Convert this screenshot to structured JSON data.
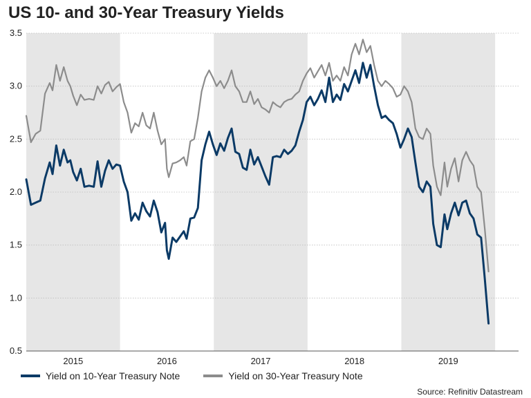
{
  "chart_data": {
    "type": "line",
    "title": "US 10- and 30-Year Treasury Yields",
    "xlabel": "",
    "ylabel": "",
    "source": "Source: Refinitiv Datastream",
    "x_range": [
      2014.5,
      2019.75
    ],
    "ylim": [
      0.5,
      3.5
    ],
    "yticks": [
      "0.5",
      "1.0",
      "1.5",
      "2.0",
      "2.5",
      "3.0",
      "3.5"
    ],
    "year_labels": [
      "2015",
      "2016",
      "2017",
      "2018",
      "2019"
    ],
    "shaded_years": [
      2015,
      2017,
      2019
    ],
    "colors": {
      "ten": "#0b3a66",
      "thirty": "#8c8c8c",
      "shade": "#e6e6e6",
      "grid": "#bdbdbd"
    },
    "series": [
      {
        "name": "Yield on 10-Year Treasury Note",
        "key": "ten",
        "points": [
          [
            2014.5,
            2.12
          ],
          [
            2014.55,
            1.88
          ],
          [
            2014.6,
            1.9
          ],
          [
            2014.65,
            1.92
          ],
          [
            2014.7,
            2.13
          ],
          [
            2014.75,
            2.28
          ],
          [
            2014.78,
            2.17
          ],
          [
            2014.82,
            2.44
          ],
          [
            2014.86,
            2.25
          ],
          [
            2014.9,
            2.4
          ],
          [
            2014.94,
            2.28
          ],
          [
            2014.97,
            2.3
          ],
          [
            2015.0,
            2.19
          ],
          [
            2015.04,
            2.11
          ],
          [
            2015.08,
            2.22
          ],
          [
            2015.12,
            2.05
          ],
          [
            2015.17,
            2.06
          ],
          [
            2015.22,
            2.05
          ],
          [
            2015.26,
            2.29
          ],
          [
            2015.3,
            2.05
          ],
          [
            2015.34,
            2.2
          ],
          [
            2015.38,
            2.3
          ],
          [
            2015.42,
            2.22
          ],
          [
            2015.46,
            2.26
          ],
          [
            2015.5,
            2.25
          ],
          [
            2015.54,
            2.1
          ],
          [
            2015.58,
            2.0
          ],
          [
            2015.62,
            1.73
          ],
          [
            2015.66,
            1.8
          ],
          [
            2015.7,
            1.74
          ],
          [
            2015.74,
            1.9
          ],
          [
            2015.78,
            1.82
          ],
          [
            2015.82,
            1.77
          ],
          [
            2015.86,
            1.92
          ],
          [
            2015.9,
            1.81
          ],
          [
            2015.94,
            1.62
          ],
          [
            2015.98,
            1.71
          ],
          [
            2016.0,
            1.45
          ],
          [
            2016.02,
            1.37
          ],
          [
            2016.06,
            1.57
          ],
          [
            2016.1,
            1.53
          ],
          [
            2016.14,
            1.58
          ],
          [
            2016.18,
            1.63
          ],
          [
            2016.21,
            1.56
          ],
          [
            2016.25,
            1.75
          ],
          [
            2016.29,
            1.76
          ],
          [
            2016.33,
            1.85
          ],
          [
            2016.37,
            2.3
          ],
          [
            2016.41,
            2.45
          ],
          [
            2016.45,
            2.57
          ],
          [
            2016.49,
            2.45
          ],
          [
            2016.53,
            2.35
          ],
          [
            2016.57,
            2.46
          ],
          [
            2016.61,
            2.39
          ],
          [
            2016.65,
            2.51
          ],
          [
            2016.69,
            2.6
          ],
          [
            2016.73,
            2.38
          ],
          [
            2016.77,
            2.36
          ],
          [
            2016.81,
            2.23
          ],
          [
            2016.85,
            2.21
          ],
          [
            2016.89,
            2.4
          ],
          [
            2016.93,
            2.26
          ],
          [
            2016.97,
            2.33
          ],
          [
            2017.01,
            2.24
          ],
          [
            2017.05,
            2.15
          ],
          [
            2017.09,
            2.07
          ],
          [
            2017.13,
            2.33
          ],
          [
            2017.17,
            2.34
          ],
          [
            2017.21,
            2.33
          ],
          [
            2017.25,
            2.4
          ],
          [
            2017.29,
            2.36
          ],
          [
            2017.33,
            2.39
          ],
          [
            2017.37,
            2.44
          ],
          [
            2017.41,
            2.57
          ],
          [
            2017.45,
            2.68
          ],
          [
            2017.49,
            2.85
          ],
          [
            2017.53,
            2.9
          ],
          [
            2017.57,
            2.82
          ],
          [
            2017.61,
            2.88
          ],
          [
            2017.65,
            2.96
          ],
          [
            2017.69,
            2.85
          ],
          [
            2017.73,
            3.08
          ],
          [
            2017.77,
            2.85
          ],
          [
            2017.81,
            2.92
          ],
          [
            2017.85,
            2.87
          ],
          [
            2017.89,
            3.02
          ],
          [
            2017.93,
            2.95
          ],
          [
            2017.97,
            3.05
          ],
          [
            2018.01,
            3.15
          ],
          [
            2018.05,
            3.03
          ],
          [
            2018.09,
            3.22
          ],
          [
            2018.13,
            3.08
          ],
          [
            2018.17,
            3.2
          ],
          [
            2018.21,
            3.0
          ],
          [
            2018.25,
            2.82
          ],
          [
            2018.29,
            2.7
          ],
          [
            2018.33,
            2.72
          ],
          [
            2018.37,
            2.68
          ],
          [
            2018.41,
            2.65
          ],
          [
            2018.45,
            2.55
          ],
          [
            2018.49,
            2.42
          ],
          [
            2018.53,
            2.5
          ],
          [
            2018.57,
            2.6
          ],
          [
            2018.61,
            2.52
          ],
          [
            2018.65,
            2.28
          ],
          [
            2018.69,
            2.05
          ],
          [
            2018.73,
            2.0
          ],
          [
            2018.77,
            2.1
          ],
          [
            2018.81,
            2.05
          ],
          [
            2018.84,
            1.7
          ],
          [
            2018.88,
            1.5
          ],
          [
            2018.92,
            1.48
          ],
          [
            2018.96,
            1.79
          ],
          [
            2018.99,
            1.65
          ],
          [
            2019.03,
            1.8
          ],
          [
            2019.07,
            1.9
          ],
          [
            2019.11,
            1.78
          ],
          [
            2019.15,
            1.9
          ],
          [
            2019.19,
            1.92
          ],
          [
            2019.23,
            1.8
          ],
          [
            2019.27,
            1.75
          ],
          [
            2019.31,
            1.6
          ],
          [
            2019.35,
            1.57
          ],
          [
            2019.39,
            1.18
          ],
          [
            2019.43,
            0.76
          ]
        ]
      },
      {
        "name": "Yield on 30-Year Treasury Note",
        "key": "thirty",
        "points": [
          [
            2014.5,
            2.72
          ],
          [
            2014.55,
            2.47
          ],
          [
            2014.6,
            2.55
          ],
          [
            2014.65,
            2.58
          ],
          [
            2014.7,
            2.93
          ],
          [
            2014.75,
            3.03
          ],
          [
            2014.78,
            2.96
          ],
          [
            2014.82,
            3.2
          ],
          [
            2014.86,
            3.05
          ],
          [
            2014.9,
            3.18
          ],
          [
            2014.94,
            3.05
          ],
          [
            2014.97,
            3.0
          ],
          [
            2015.0,
            2.91
          ],
          [
            2015.04,
            2.82
          ],
          [
            2015.08,
            2.92
          ],
          [
            2015.12,
            2.87
          ],
          [
            2015.17,
            2.88
          ],
          [
            2015.22,
            2.87
          ],
          [
            2015.26,
            3.0
          ],
          [
            2015.3,
            2.93
          ],
          [
            2015.34,
            3.01
          ],
          [
            2015.38,
            3.04
          ],
          [
            2015.42,
            2.95
          ],
          [
            2015.46,
            2.99
          ],
          [
            2015.5,
            3.02
          ],
          [
            2015.54,
            2.85
          ],
          [
            2015.58,
            2.75
          ],
          [
            2015.62,
            2.56
          ],
          [
            2015.66,
            2.65
          ],
          [
            2015.7,
            2.62
          ],
          [
            2015.74,
            2.75
          ],
          [
            2015.78,
            2.63
          ],
          [
            2015.82,
            2.6
          ],
          [
            2015.86,
            2.75
          ],
          [
            2015.9,
            2.58
          ],
          [
            2015.94,
            2.45
          ],
          [
            2015.98,
            2.5
          ],
          [
            2016.0,
            2.22
          ],
          [
            2016.02,
            2.14
          ],
          [
            2016.06,
            2.27
          ],
          [
            2016.1,
            2.28
          ],
          [
            2016.14,
            2.3
          ],
          [
            2016.18,
            2.33
          ],
          [
            2016.21,
            2.25
          ],
          [
            2016.25,
            2.48
          ],
          [
            2016.29,
            2.5
          ],
          [
            2016.33,
            2.7
          ],
          [
            2016.37,
            2.95
          ],
          [
            2016.41,
            3.08
          ],
          [
            2016.45,
            3.15
          ],
          [
            2016.49,
            3.08
          ],
          [
            2016.53,
            3.0
          ],
          [
            2016.57,
            3.05
          ],
          [
            2016.61,
            2.98
          ],
          [
            2016.65,
            3.05
          ],
          [
            2016.69,
            3.15
          ],
          [
            2016.73,
            3.0
          ],
          [
            2016.77,
            2.95
          ],
          [
            2016.81,
            2.85
          ],
          [
            2016.85,
            2.85
          ],
          [
            2016.89,
            2.95
          ],
          [
            2016.93,
            2.83
          ],
          [
            2016.97,
            2.88
          ],
          [
            2017.01,
            2.8
          ],
          [
            2017.05,
            2.78
          ],
          [
            2017.09,
            2.75
          ],
          [
            2017.13,
            2.85
          ],
          [
            2017.17,
            2.82
          ],
          [
            2017.21,
            2.8
          ],
          [
            2017.25,
            2.85
          ],
          [
            2017.29,
            2.87
          ],
          [
            2017.33,
            2.88
          ],
          [
            2017.37,
            2.92
          ],
          [
            2017.41,
            2.95
          ],
          [
            2017.45,
            3.05
          ],
          [
            2017.49,
            3.12
          ],
          [
            2017.53,
            3.17
          ],
          [
            2017.57,
            3.08
          ],
          [
            2017.61,
            3.14
          ],
          [
            2017.65,
            3.2
          ],
          [
            2017.69,
            3.1
          ],
          [
            2017.73,
            3.22
          ],
          [
            2017.77,
            3.05
          ],
          [
            2017.81,
            3.1
          ],
          [
            2017.85,
            3.05
          ],
          [
            2017.89,
            3.18
          ],
          [
            2017.93,
            3.1
          ],
          [
            2017.97,
            3.3
          ],
          [
            2018.01,
            3.4
          ],
          [
            2018.05,
            3.3
          ],
          [
            2018.09,
            3.44
          ],
          [
            2018.13,
            3.32
          ],
          [
            2018.17,
            3.38
          ],
          [
            2018.21,
            3.2
          ],
          [
            2018.25,
            3.05
          ],
          [
            2018.29,
            3.0
          ],
          [
            2018.33,
            3.05
          ],
          [
            2018.37,
            3.02
          ],
          [
            2018.41,
            2.98
          ],
          [
            2018.45,
            2.9
          ],
          [
            2018.49,
            2.92
          ],
          [
            2018.53,
            3.0
          ],
          [
            2018.57,
            2.95
          ],
          [
            2018.61,
            2.85
          ],
          [
            2018.65,
            2.6
          ],
          [
            2018.69,
            2.52
          ],
          [
            2018.73,
            2.5
          ],
          [
            2018.77,
            2.6
          ],
          [
            2018.81,
            2.55
          ],
          [
            2018.84,
            2.25
          ],
          [
            2018.88,
            2.05
          ],
          [
            2018.92,
            1.97
          ],
          [
            2018.96,
            2.28
          ],
          [
            2018.99,
            2.05
          ],
          [
            2019.03,
            2.22
          ],
          [
            2019.07,
            2.32
          ],
          [
            2019.11,
            2.1
          ],
          [
            2019.15,
            2.3
          ],
          [
            2019.19,
            2.38
          ],
          [
            2019.23,
            2.3
          ],
          [
            2019.27,
            2.25
          ],
          [
            2019.31,
            2.05
          ],
          [
            2019.35,
            2.0
          ],
          [
            2019.39,
            1.65
          ],
          [
            2019.43,
            1.25
          ]
        ]
      }
    ]
  }
}
